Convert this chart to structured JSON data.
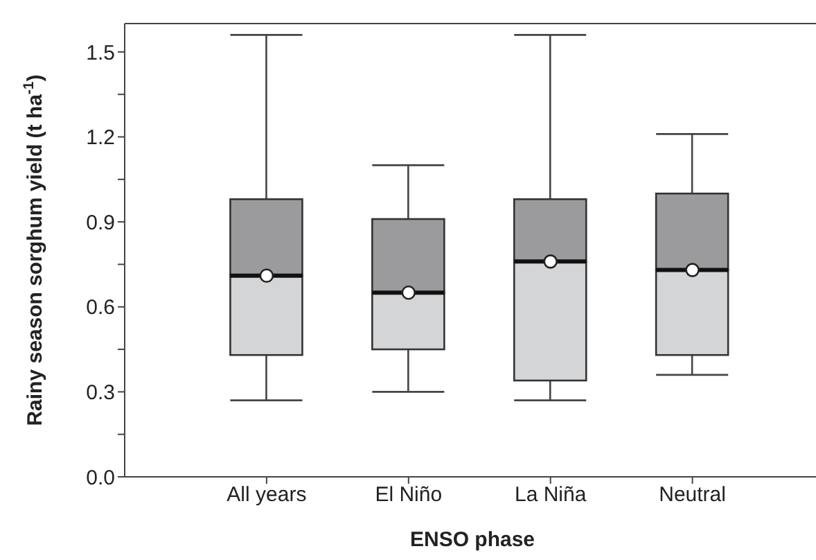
{
  "chart_data": {
    "type": "box",
    "xlabel": "ENSO phase",
    "ylabel": "Rainy season sorghum yield (t ha$^{-1}$)",
    "categories": [
      "All years",
      "El Niño",
      "La Niña",
      "Neutral"
    ],
    "colors": [
      "#d4d5d7",
      "#d4d5d7",
      "#d4d5d7",
      "#d4d5d7"
    ],
    "boxes": [
      {
        "low": 0.27,
        "q1": 0.43,
        "median": 0.71,
        "q3": 0.98,
        "high": 1.56,
        "mean": 0.71
      },
      {
        "low": 0.3,
        "q1": 0.45,
        "median": 0.65,
        "q3": 0.91,
        "high": 1.1,
        "mean": 0.65
      },
      {
        "low": 0.27,
        "q1": 0.34,
        "median": 0.76,
        "q3": 0.98,
        "high": 1.56,
        "mean": 0.76
      },
      {
        "low": 0.36,
        "q1": 0.43,
        "median": 0.73,
        "q3": 1.0,
        "high": 1.21,
        "mean": 0.73
      }
    ],
    "ylim": [
      0,
      1.6
    ],
    "yticks": [
      {
        "value": 0,
        "label": "0.0"
      },
      {
        "value": 0.15,
        "label": null
      },
      {
        "value": 0.3,
        "label": "0.3"
      },
      {
        "value": 0.45,
        "label": null
      },
      {
        "value": 0.6,
        "label": "0.6"
      },
      {
        "value": 0.75,
        "label": null
      },
      {
        "value": 0.9,
        "label": "0.9"
      },
      {
        "value": 1.05,
        "label": null
      },
      {
        "value": 1.2,
        "label": "1.2"
      },
      {
        "value": 1.35,
        "label": null
      },
      {
        "value": 1.5,
        "label": "1.5"
      }
    ],
    "marker": "circle"
  }
}
